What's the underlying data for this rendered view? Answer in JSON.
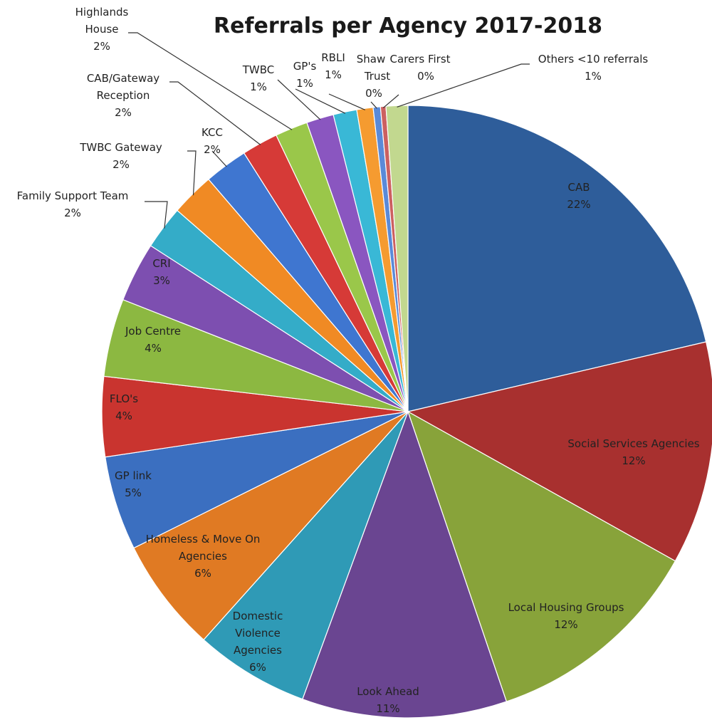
{
  "chart_data": {
    "type": "pie",
    "title": "Referrals per Agency 2017-2018",
    "slices": [
      {
        "label": "CAB",
        "pct_label": "22%",
        "value": 22.3,
        "color": "#2e5d9a"
      },
      {
        "label": "Social Services Agencies",
        "pct_label": "12%",
        "value": 12.3,
        "color": "#a8302f"
      },
      {
        "label": "Local Housing Groups",
        "pct_label": "12%",
        "value": 12.2,
        "color": "#88a33a"
      },
      {
        "label": "Look Ahead",
        "pct_label": "11%",
        "value": 11.3,
        "color": "#6a4591"
      },
      {
        "label": "Domestic Violence Agencies",
        "pct_label": "6%",
        "value": 6.3,
        "color": "#2f9ab6"
      },
      {
        "label": "Homeless & Move On Agencies",
        "pct_label": "6%",
        "value": 6.3,
        "color": "#e07a23"
      },
      {
        "label": "GP link",
        "pct_label": "5%",
        "value": 5.2,
        "color": "#3b6fc0"
      },
      {
        "label": "FLO's",
        "pct_label": "4%",
        "value": 4.4,
        "color": "#c9342f"
      },
      {
        "label": "Job Centre",
        "pct_label": "4%",
        "value": 4.3,
        "color": "#8cb841"
      },
      {
        "label": "CRI",
        "pct_label": "3%",
        "value": 3.3,
        "color": "#7d4fb0"
      },
      {
        "label": "Family Support Team",
        "pct_label": "2%",
        "value": 2.4,
        "color": "#34acc8"
      },
      {
        "label": "TWBC Gateway",
        "pct_label": "2%",
        "value": 2.4,
        "color": "#f08a24"
      },
      {
        "label": "KCC",
        "pct_label": "2%",
        "value": 2.4,
        "color": "#3f76d0"
      },
      {
        "label": "CAB/Gateway Reception",
        "pct_label": "2%",
        "value": 2.0,
        "color": "#d63a37"
      },
      {
        "label": "Highlands House",
        "pct_label": "2%",
        "value": 1.8,
        "color": "#9ac74a"
      },
      {
        "label": "TWBC",
        "pct_label": "1%",
        "value": 1.5,
        "color": "#8a56c0"
      },
      {
        "label": "GP's",
        "pct_label": "1%",
        "value": 1.3,
        "color": "#39b8d6"
      },
      {
        "label": "RBLI",
        "pct_label": "1%",
        "value": 0.9,
        "color": "#f59b30"
      },
      {
        "label": "Shaw Trust",
        "pct_label": "0%",
        "value": 0.4,
        "color": "#5a8ad8"
      },
      {
        "label": "Carers First",
        "pct_label": "0%",
        "value": 0.3,
        "color": "#cc6060"
      },
      {
        "label": "Others <10 referrals",
        "pct_label": "1%",
        "value": 1.2,
        "color": "#c2d88f"
      }
    ]
  }
}
